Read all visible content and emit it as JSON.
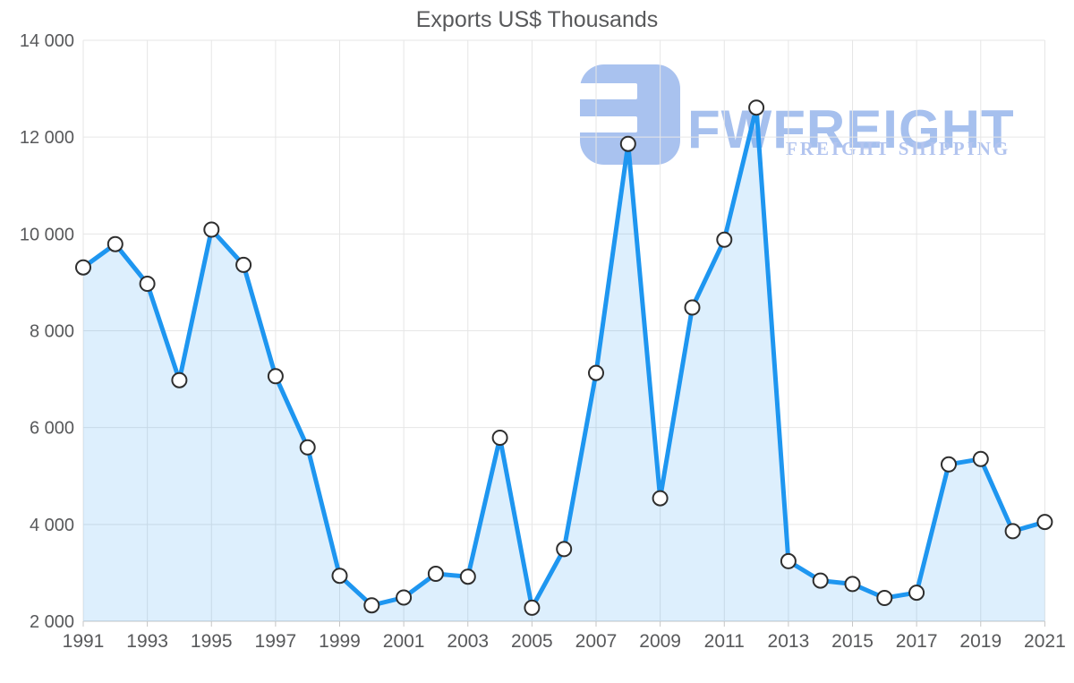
{
  "chart_data": {
    "type": "area",
    "title": "Exports US$ Thousands",
    "x": [
      1991,
      1992,
      1993,
      1994,
      1995,
      1996,
      1997,
      1998,
      1999,
      2000,
      2001,
      2002,
      2003,
      2004,
      2005,
      2006,
      2007,
      2008,
      2009,
      2010,
      2011,
      2012,
      2013,
      2014,
      2015,
      2016,
      2017,
      2018,
      2019,
      2020,
      2021
    ],
    "values": [
      9310,
      9790,
      8970,
      6980,
      10090,
      9360,
      7060,
      5590,
      2940,
      2330,
      2490,
      2980,
      2920,
      5790,
      2280,
      3490,
      7130,
      11860,
      4540,
      8480,
      9880,
      12610,
      3240,
      2840,
      2770,
      2480,
      2590,
      5240,
      5350,
      3860,
      4050
    ],
    "x_ticks": [
      1991,
      1993,
      1995,
      1997,
      1999,
      2001,
      2003,
      2005,
      2007,
      2009,
      2011,
      2013,
      2015,
      2017,
      2019,
      2021
    ],
    "x_tick_labels": [
      "1991",
      "1993",
      "1995",
      "1997",
      "1999",
      "2001",
      "2003",
      "2005",
      "2007",
      "2009",
      "2011",
      "2013",
      "2015",
      "2017",
      "2019",
      "2021"
    ],
    "y_ticks": [
      2000,
      4000,
      6000,
      8000,
      10000,
      12000,
      14000
    ],
    "y_tick_labels": [
      "2 000",
      "4 000",
      "6 000",
      "8 000",
      "10 000",
      "12 000",
      "14 000"
    ],
    "xlim": [
      1991,
      2021
    ],
    "ylim": [
      2000,
      14000
    ],
    "grid": true,
    "legend": "none",
    "xlabel": "",
    "ylabel": "",
    "colors": {
      "line": "#1e96f0",
      "fill": "rgba(30,150,240,0.15)",
      "marker_fill": "#ffffff",
      "marker_stroke": "#2e2e2e",
      "grid": "#e6e6e6",
      "axis_line": "#c5c5c5",
      "label": "#58595b",
      "title": "#58595b"
    }
  },
  "watermark": {
    "brand": "FWFREIGHT",
    "tagline": "FREIGHT SHIPPING",
    "icon_color": "#a9c2ef",
    "brand_color": "#a6c0ee",
    "tagline_color": "#b2c4ef"
  }
}
